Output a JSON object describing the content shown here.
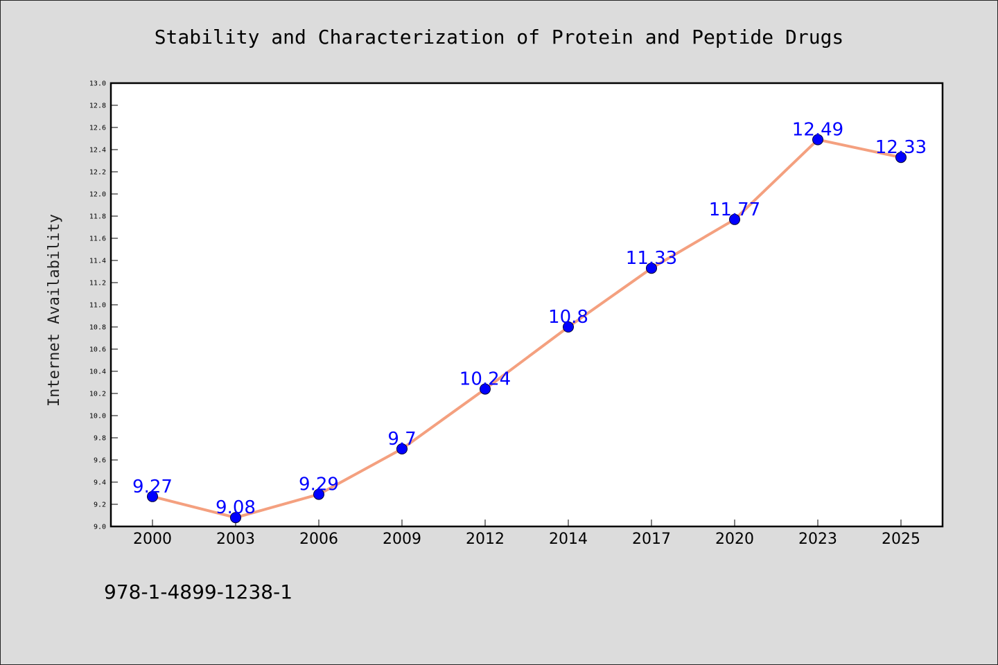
{
  "chart_data": {
    "type": "line",
    "title": "Stability and Characterization of Protein and Peptide Drugs",
    "xlabel": "",
    "ylabel": "Internet Availability",
    "categories": [
      "2000",
      "2003",
      "2006",
      "2009",
      "2012",
      "2014",
      "2017",
      "2020",
      "2023",
      "2025"
    ],
    "series": [
      {
        "values": [
          9.27,
          9.08,
          9.29,
          9.7,
          10.24,
          10.8,
          11.33,
          11.77,
          12.49,
          12.33
        ],
        "data_labels": [
          "9.27",
          "9.08",
          "9.29",
          "9.7",
          "10.24",
          "10.8",
          "11.33",
          "11.77",
          "12.49",
          "12.33"
        ],
        "line_color": "#f4a07f",
        "marker_color": "#0000ff"
      }
    ],
    "ylim": [
      9.0,
      13.0
    ],
    "yticks": [
      "9.0",
      "9.2",
      "9.4",
      "9.6",
      "9.8",
      "10.0",
      "10.2",
      "10.4",
      "10.6",
      "10.8",
      "11.0",
      "11.2",
      "11.4",
      "11.6",
      "11.8",
      "12.0",
      "12.2",
      "12.4",
      "12.6",
      "12.8",
      "13.0"
    ],
    "grid": false,
    "legend": "none"
  },
  "footer": {
    "isbn": "978-1-4899-1238-1"
  },
  "colors": {
    "background": "#dcdcdc",
    "plot_background": "#ffffff",
    "label": "#0000ff"
  }
}
